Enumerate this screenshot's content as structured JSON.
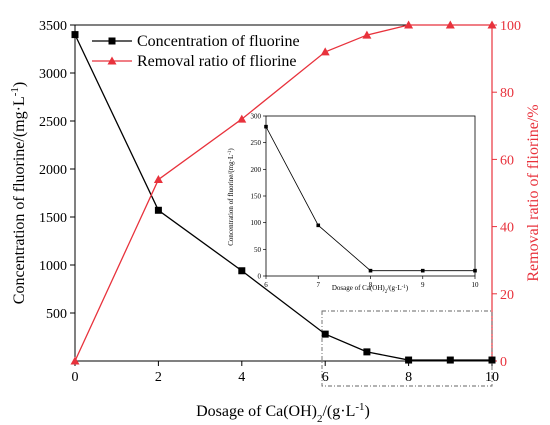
{
  "chart_data": [
    {
      "type": "line",
      "x": [
        0,
        2,
        4,
        6,
        7,
        8,
        9,
        10
      ],
      "xlabel": "Dosage of Ca(OH)",
      "xlabel_sub": "2",
      "xlabel_tail": "/(g·L",
      "xlabel_sup": "-1",
      "xlabel_close": ")",
      "xlim": [
        0,
        10
      ],
      "xticks": [
        0,
        2,
        4,
        6,
        8,
        10
      ],
      "ylabel_left": "Concentration of fluorine/(mg·L",
      "ylabel_left_sup": "-1",
      "ylabel_left_close": ")",
      "ylim_left": [
        0,
        3500
      ],
      "yticks_left": [
        500,
        1000,
        1500,
        2000,
        2500,
        3000,
        3500
      ],
      "ylabel_right": "Removal ratio of fliorine/%",
      "ylim_right": [
        0,
        100
      ],
      "yticks_right": [
        0,
        20,
        40,
        60,
        80,
        100
      ],
      "legend_position": "top-left",
      "series": [
        {
          "name": "Concentration of fluorine",
          "axis": "left",
          "color": "#000000",
          "marker": "square",
          "x": [
            0,
            2,
            4,
            6,
            7,
            8,
            9,
            10
          ],
          "values": [
            3400,
            1570,
            940,
            280,
            95,
            10,
            10,
            10
          ]
        },
        {
          "name": "Removal ratio of fliorine",
          "axis": "right",
          "color": "#e8323c",
          "marker": "triangle",
          "x": [
            0,
            2,
            4,
            6,
            7,
            8,
            9,
            10
          ],
          "values": [
            0,
            54,
            72,
            92,
            97,
            100,
            100,
            100
          ]
        }
      ]
    },
    {
      "type": "line",
      "inset": true,
      "x": [
        6,
        7,
        8,
        9,
        10
      ],
      "values": [
        280,
        95,
        10,
        10,
        10
      ],
      "xlim": [
        6,
        10
      ],
      "xticks": [
        6,
        7,
        8,
        9,
        10
      ],
      "ylim": [
        0,
        300
      ],
      "yticks": [
        0,
        50,
        100,
        150,
        200,
        250,
        300
      ],
      "xlabel": "Dosage of Ca(OH)",
      "xlabel_sub": "2",
      "xlabel_tail": "/(g·L",
      "xlabel_sup": "-1",
      "xlabel_close": ")",
      "ylabel": "Concentration of fluorine/(mg·L",
      "ylabel_sup": "-1",
      "ylabel_close": ")"
    }
  ]
}
